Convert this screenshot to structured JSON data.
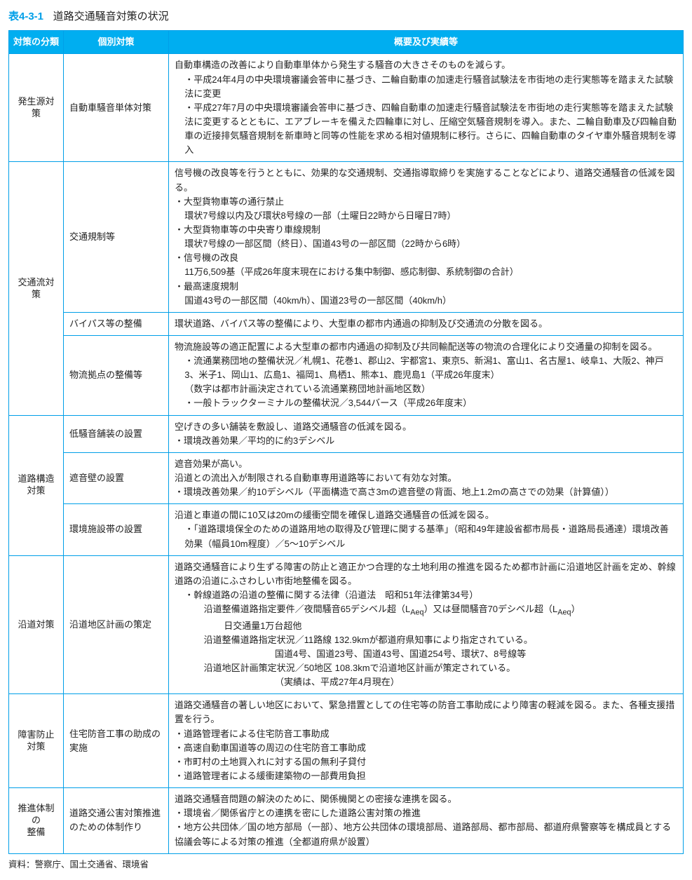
{
  "title": {
    "number": "表4-3-1",
    "text": "道路交通騒音対策の状況"
  },
  "headers": {
    "col1": "対策の分類",
    "col2": "個別対策",
    "col3": "概要及び実績等"
  },
  "source": "資料：警察庁、国土交通省、環境省",
  "rows": {
    "r1": {
      "cat": "発生源対策",
      "measure": "自動車騒音単体対策",
      "p0": "自動車構造の改善により自動車単体から発生する騒音の大きさそのものを減らす。",
      "p1": "・平成24年4月の中央環境審議会答申に基づき、二輪自動車の加速走行騒音試験法を市街地の走行実態等を踏まえた試験法に変更",
      "p2": "・平成27年7月の中央環境審議会答申に基づき、四輪自動車の加速走行騒音試験法を市街地の走行実態等を踏まえた試験法に変更するとともに、エアブレーキを備えた四輪車に対し、圧縮空気騒音規制を導入。また、二輪自動車及び四輪自動車の近接排気騒音規制を新車時と同等の性能を求める相対値規制に移行。さらに、四輪自動車のタイヤ車外騒音規制を導入"
    },
    "r2": {
      "cat": "交通流対策",
      "measure": "交通規制等",
      "p0": "信号機の改良等を行うとともに、効果的な交通規制、交通指導取締りを実施することなどにより、道路交通騒音の低減を図る。",
      "p1": "・大型貨物車等の通行禁止",
      "p1a": "環状7号線以内及び環状8号線の一部（土曜日22時から日曜日7時）",
      "p2": "・大型貨物車等の中央寄り車線規制",
      "p2a": "環状7号線の一部区間（終日）、国道43号の一部区間（22時から6時）",
      "p3": "・信号機の改良",
      "p3a": "11万6,509基（平成26年度末現在における集中制御、感応制御、系統制御の合計）",
      "p4": "・最高速度規制",
      "p4a": "国道43号の一部区間（40km/h）、国道23号の一部区間（40km/h）"
    },
    "r3": {
      "measure": "バイパス等の整備",
      "p0": "環状道路、バイパス等の整備により、大型車の都市内通過の抑制及び交通流の分散を図る。"
    },
    "r4": {
      "measure": "物流拠点の整備等",
      "p0": "物流施設等の適正配置による大型車の都市内通過の抑制及び共同輸配送等の物流の合理化により交通量の抑制を図る。",
      "p1": "・流通業務団地の整備状況／札幌1、花巻1、郡山2、宇都宮1、東京5、新潟1、富山1、名古屋1、岐阜1、大阪2、神戸3、米子1、岡山1、広島1、福岡1、鳥栖1、熊本1、鹿児島1（平成26年度末）",
      "p2": "（数字は都市計画決定されている流通業務団地計画地区数）",
      "p3": "・一般トラックターミナルの整備状況／3,544バース（平成26年度末）"
    },
    "r5": {
      "cat": "道路構造\n対策",
      "measure": "低騒音舗装の設置",
      "p0": "空げきの多い舗装を敷設し、道路交通騒音の低減を図る。",
      "p1": "・環境改善効果／平均的に約3デシベル"
    },
    "r6": {
      "measure": "遮音壁の設置",
      "p0": "遮音効果が高い。",
      "p1": "沿道との流出入が制限される自動車専用道路等において有効な対策。",
      "p2": "・環境改善効果／約10デシベル（平面構造で高さ3mの遮音壁の背面、地上1.2mの高さでの効果（計算値））"
    },
    "r7": {
      "measure": "環境施設帯の設置",
      "p0": "沿道と車道の間に10又は20mの緩衝空間を確保し道路交通騒音の低減を図る。",
      "p1": "・「道路環境保全のための道路用地の取得及び管理に関する基準」（昭和49年建設省都市局長・道路局長通達）環境改善効果（幅員10m程度）／5〜10デシベル"
    },
    "r8": {
      "cat": "沿道対策",
      "measure": "沿道地区計画の策定",
      "p0": "道路交通騒音により生ずる障害の防止と適正かつ合理的な土地利用の推進を図るため都市計画に沿道地区計画を定め、幹線道路の沿道にふさわしい市街地整備を図る。",
      "p1": "・幹線道路の沿道の整備に関する法律（沿道法　昭和51年法律第34号）",
      "p1a_pre": "沿道整備道路指定要件／夜間騒音65デシベル超（L",
      "p1a_post": "）又は昼間騒音70デシベル超（L",
      "p1a_end": "）",
      "p1b": "日交通量1万台超他",
      "p1c": "沿道整備道路指定状況／11路線 132.9kmが都道府県知事により指定されている。",
      "p1d": "国道4号、国道23号、国道43号、国道254号、環状7、8号線等",
      "p1e": "沿道地区計画策定状況／50地区 108.3kmで沿道地区計画が策定されている。",
      "p1f": "（実績は、平成27年4月現在）"
    },
    "r9": {
      "cat": "障害防止\n対策",
      "measure": "住宅防音工事の助成の実施",
      "p0": "道路交通騒音の著しい地区において、緊急措置としての住宅等の防音工事助成により障害の軽減を図る。また、各種支援措置を行う。",
      "p1": "・道路管理者による住宅防音工事助成",
      "p2": "・高速自動車国道等の周辺の住宅防音工事助成",
      "p3": "・市町村の土地買入れに対する国の無利子貸付",
      "p4": "・道路管理者による緩衝建築物の一部費用負担"
    },
    "r10": {
      "cat": "推進体制の\n整備",
      "measure": "道路交通公害対策推進のための体制作り",
      "p0": "道路交通騒音問題の解決のために、関係機関との密接な連携を図る。",
      "p1": "・環境省／関係省庁との連携を密にした道路公害対策の推進",
      "p2": "・地方公共団体／国の地方部局（一部）、地方公共団体の環境部局、道路部局、都市部局、都道府県警察等を構成員とする協議会等による対策の推進（全都道府県が設置）"
    }
  }
}
